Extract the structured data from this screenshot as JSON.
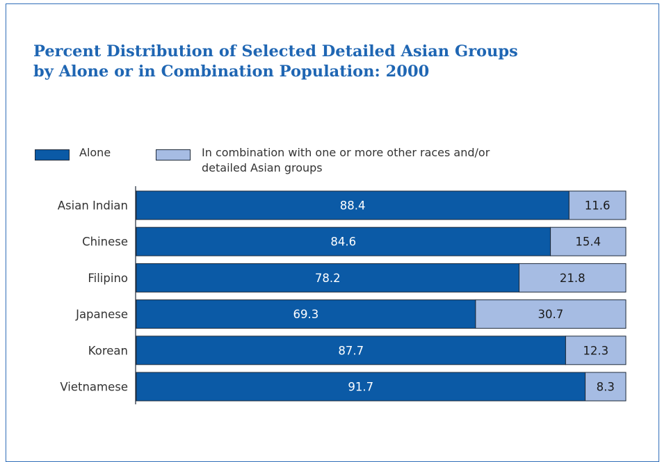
{
  "colors": {
    "alone": "#0b5aa6",
    "combination": "#a6bce3",
    "title": "#1f66b3",
    "frame": "#2f6db8"
  },
  "chart_data": {
    "type": "bar",
    "orientation": "horizontal",
    "stacked": true,
    "title": "Percent Distribution of Selected Detailed Asian Groups\nby Alone or in Combination Population: 2000",
    "categories": [
      "Asian Indian",
      "Chinese",
      "Filipino",
      "Japanese",
      "Korean",
      "Vietnamese"
    ],
    "series": [
      {
        "name": "Alone",
        "values": [
          88.4,
          84.6,
          78.2,
          69.3,
          87.7,
          91.7
        ]
      },
      {
        "name": "In combination with one or more other races and/or\ndetailed Asian groups",
        "values": [
          11.6,
          15.4,
          21.8,
          30.7,
          12.3,
          8.3
        ]
      }
    ],
    "xlim": [
      0,
      100
    ],
    "xlabel": "",
    "ylabel": "",
    "grid": false,
    "legend_position": "top-left"
  }
}
